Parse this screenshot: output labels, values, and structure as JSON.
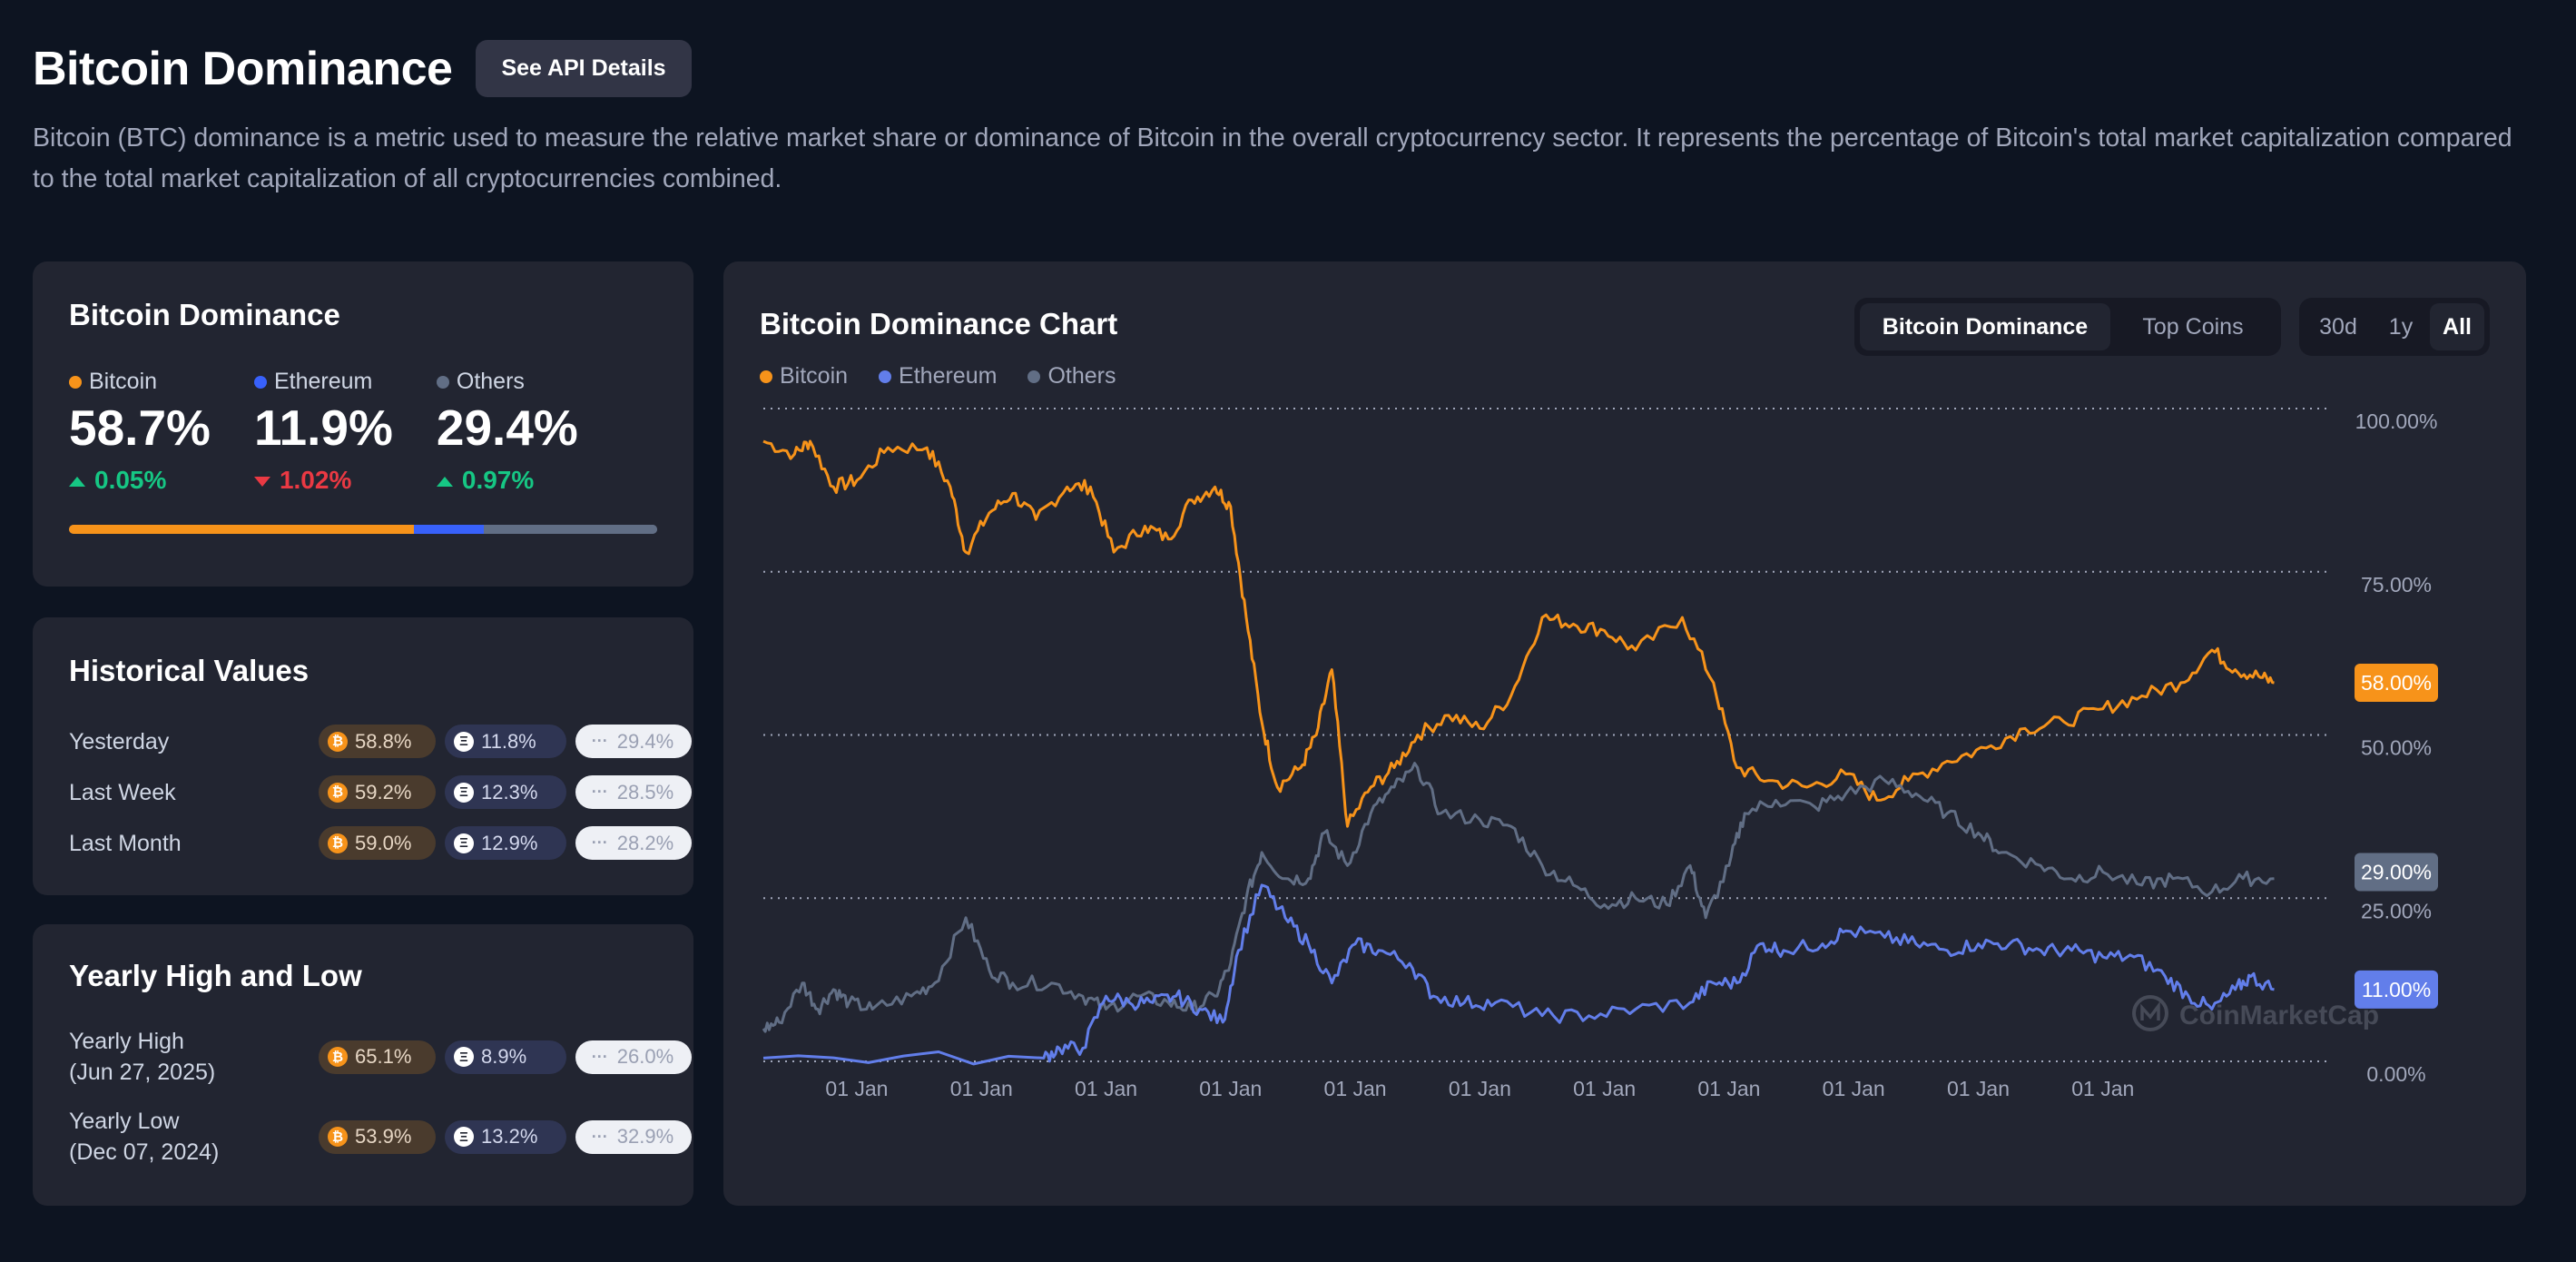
{
  "header": {
    "title": "Bitcoin Dominance",
    "api_button": "See API Details",
    "description": "Bitcoin (BTC) dominance is a metric used to measure the relative market share or dominance of Bitcoin in the overall cryptocurrency sector. It represents the percentage of Bitcoin's total market capitalization compared to the total market capitalization of all cryptocurrencies combined."
  },
  "colors": {
    "bitcoin": "#f7931a",
    "ethereum": "#627eea",
    "others": "#616e85"
  },
  "dominance": {
    "title": "Bitcoin Dominance",
    "items": [
      {
        "label": "Bitcoin",
        "value": "58.7%",
        "change": "0.05%",
        "direction": "up",
        "share": 58.7
      },
      {
        "label": "Ethereum",
        "value": "11.9%",
        "change": "1.02%",
        "direction": "down",
        "share": 11.9
      },
      {
        "label": "Others",
        "value": "29.4%",
        "change": "0.97%",
        "direction": "up",
        "share": 29.4
      }
    ]
  },
  "historical": {
    "title": "Historical Values",
    "rows": [
      {
        "label": "Yesterday",
        "btc": "58.8%",
        "eth": "11.8%",
        "others": "29.4%"
      },
      {
        "label": "Last Week",
        "btc": "59.2%",
        "eth": "12.3%",
        "others": "28.5%"
      },
      {
        "label": "Last Month",
        "btc": "59.0%",
        "eth": "12.9%",
        "others": "28.2%"
      }
    ]
  },
  "yearly": {
    "title": "Yearly High and Low",
    "rows": [
      {
        "label": "Yearly High",
        "date": "(Jun 27, 2025)",
        "btc": "65.1%",
        "eth": "8.9%",
        "others": "26.0%"
      },
      {
        "label": "Yearly Low",
        "date": "(Dec 07, 2024)",
        "btc": "53.9%",
        "eth": "13.2%",
        "others": "32.9%"
      }
    ]
  },
  "chart": {
    "title": "Bitcoin Dominance Chart",
    "tabs": [
      "Bitcoin Dominance",
      "Top Coins"
    ],
    "active_tab": "Bitcoin Dominance",
    "ranges": [
      "30d",
      "1y",
      "All"
    ],
    "active_range": "All",
    "legend": [
      "Bitcoin",
      "Ethereum",
      "Others"
    ],
    "watermark": "CoinMarketCap",
    "badges": {
      "bitcoin": "58.00%",
      "others": "29.00%",
      "ethereum": "11.00%"
    }
  },
  "chart_data": {
    "type": "line",
    "title": "Bitcoin Dominance Chart",
    "y_ticks": [
      "100.00%",
      "75.00%",
      "50.00%",
      "25.00%",
      "0.00%"
    ],
    "ylim": [
      0,
      100
    ],
    "x_tick_labels": [
      "01 Jan",
      "01 Jan",
      "01 Jan",
      "01 Jan",
      "01 Jan",
      "01 Jan",
      "01 Jan",
      "01 Jan",
      "01 Jan",
      "01 Jan",
      "01 Jan"
    ],
    "x_ticks": [
      0.6,
      1.4,
      2.2,
      3.0,
      3.8,
      4.6,
      5.4,
      6.2,
      7.0,
      7.8,
      8.6
    ],
    "xlim": [
      0,
      10
    ],
    "series": [
      {
        "name": "Bitcoin",
        "color": "#f7931a",
        "points": [
          [
            0,
            95
          ],
          [
            0.2,
            93
          ],
          [
            0.3,
            95
          ],
          [
            0.45,
            88
          ],
          [
            0.6,
            89
          ],
          [
            0.8,
            94
          ],
          [
            1.05,
            94
          ],
          [
            1.2,
            88
          ],
          [
            1.3,
            78
          ],
          [
            1.45,
            84
          ],
          [
            1.6,
            87
          ],
          [
            1.75,
            83
          ],
          [
            1.95,
            88
          ],
          [
            2.1,
            88
          ],
          [
            2.25,
            78
          ],
          [
            2.45,
            82
          ],
          [
            2.6,
            80
          ],
          [
            2.75,
            86
          ],
          [
            2.9,
            88
          ],
          [
            3.0,
            85
          ],
          [
            3.1,
            68
          ],
          [
            3.2,
            52
          ],
          [
            3.3,
            42
          ],
          [
            3.45,
            45
          ],
          [
            3.55,
            50
          ],
          [
            3.65,
            60
          ],
          [
            3.75,
            36
          ],
          [
            3.9,
            42
          ],
          [
            4.05,
            45
          ],
          [
            4.2,
            50
          ],
          [
            4.4,
            53
          ],
          [
            4.6,
            51
          ],
          [
            4.8,
            56
          ],
          [
            5.0,
            68
          ],
          [
            5.2,
            67
          ],
          [
            5.4,
            66
          ],
          [
            5.6,
            63
          ],
          [
            5.9,
            68
          ],
          [
            6.1,
            58
          ],
          [
            6.25,
            45
          ],
          [
            6.45,
            43
          ],
          [
            6.7,
            42
          ],
          [
            6.95,
            44
          ],
          [
            7.15,
            40
          ],
          [
            7.35,
            43
          ],
          [
            7.6,
            46
          ],
          [
            7.85,
            48
          ],
          [
            8.1,
            51
          ],
          [
            8.35,
            52
          ],
          [
            8.6,
            54
          ],
          [
            8.85,
            56
          ],
          [
            9.1,
            58
          ],
          [
            9.3,
            63
          ],
          [
            9.45,
            60
          ],
          [
            9.6,
            59
          ],
          [
            9.7,
            58
          ]
        ]
      },
      {
        "name": "Others",
        "color": "#616e85",
        "points": [
          [
            0,
            5
          ],
          [
            0.1,
            6
          ],
          [
            0.25,
            12
          ],
          [
            0.35,
            8
          ],
          [
            0.45,
            11
          ],
          [
            0.55,
            9
          ],
          [
            0.7,
            8
          ],
          [
            0.95,
            10
          ],
          [
            1.1,
            12
          ],
          [
            1.3,
            22
          ],
          [
            1.45,
            14
          ],
          [
            1.6,
            12
          ],
          [
            1.85,
            12
          ],
          [
            2.05,
            10
          ],
          [
            2.2,
            8
          ],
          [
            2.4,
            10
          ],
          [
            2.6,
            9
          ],
          [
            2.75,
            8
          ],
          [
            2.9,
            10
          ],
          [
            3.0,
            15
          ],
          [
            3.1,
            25
          ],
          [
            3.2,
            32
          ],
          [
            3.35,
            28
          ],
          [
            3.5,
            28
          ],
          [
            3.6,
            35
          ],
          [
            3.75,
            30
          ],
          [
            3.9,
            38
          ],
          [
            4.05,
            42
          ],
          [
            4.2,
            45
          ],
          [
            4.35,
            38
          ],
          [
            4.6,
            37
          ],
          [
            4.8,
            36
          ],
          [
            5.0,
            30
          ],
          [
            5.2,
            27
          ],
          [
            5.4,
            24
          ],
          [
            5.6,
            25
          ],
          [
            5.8,
            24
          ],
          [
            5.95,
            30
          ],
          [
            6.05,
            22
          ],
          [
            6.2,
            30
          ],
          [
            6.3,
            38
          ],
          [
            6.5,
            40
          ],
          [
            6.75,
            39
          ],
          [
            6.95,
            41
          ],
          [
            7.2,
            43
          ],
          [
            7.4,
            41
          ],
          [
            7.6,
            38
          ],
          [
            7.8,
            35
          ],
          [
            7.95,
            32
          ],
          [
            8.2,
            30
          ],
          [
            8.4,
            28
          ],
          [
            8.6,
            29
          ],
          [
            8.85,
            27
          ],
          [
            9.05,
            28
          ],
          [
            9.3,
            26
          ],
          [
            9.5,
            28
          ],
          [
            9.7,
            28
          ]
        ]
      },
      {
        "name": "Ethereum",
        "color": "#627eea",
        "points": [
          [
            0,
            0.5
          ],
          [
            1.8,
            0.5
          ],
          [
            1.9,
            2
          ],
          [
            2.05,
            2
          ],
          [
            2.2,
            10
          ],
          [
            2.35,
            9
          ],
          [
            2.5,
            9
          ],
          [
            2.65,
            10
          ],
          [
            2.8,
            8
          ],
          [
            2.95,
            6
          ],
          [
            3.05,
            17
          ],
          [
            3.2,
            27
          ],
          [
            3.35,
            22
          ],
          [
            3.5,
            18
          ],
          [
            3.65,
            12
          ],
          [
            3.8,
            18
          ],
          [
            3.95,
            17
          ],
          [
            4.15,
            15
          ],
          [
            4.3,
            10
          ],
          [
            4.5,
            9
          ],
          [
            4.7,
            9
          ],
          [
            5.0,
            7
          ],
          [
            5.3,
            7
          ],
          [
            5.6,
            8
          ],
          [
            5.95,
            9
          ],
          [
            6.1,
            12
          ],
          [
            6.25,
            12
          ],
          [
            6.4,
            18
          ],
          [
            6.55,
            17
          ],
          [
            6.8,
            18
          ],
          [
            6.95,
            20
          ],
          [
            7.2,
            19
          ],
          [
            7.4,
            18
          ],
          [
            7.6,
            17
          ],
          [
            7.8,
            18
          ],
          [
            8.0,
            18
          ],
          [
            8.2,
            17
          ],
          [
            8.4,
            17
          ],
          [
            8.6,
            16
          ],
          [
            8.8,
            16
          ],
          [
            9.0,
            13
          ],
          [
            9.15,
            10
          ],
          [
            9.3,
            8
          ],
          [
            9.45,
            11
          ],
          [
            9.55,
            13
          ],
          [
            9.7,
            11
          ]
        ]
      }
    ]
  }
}
